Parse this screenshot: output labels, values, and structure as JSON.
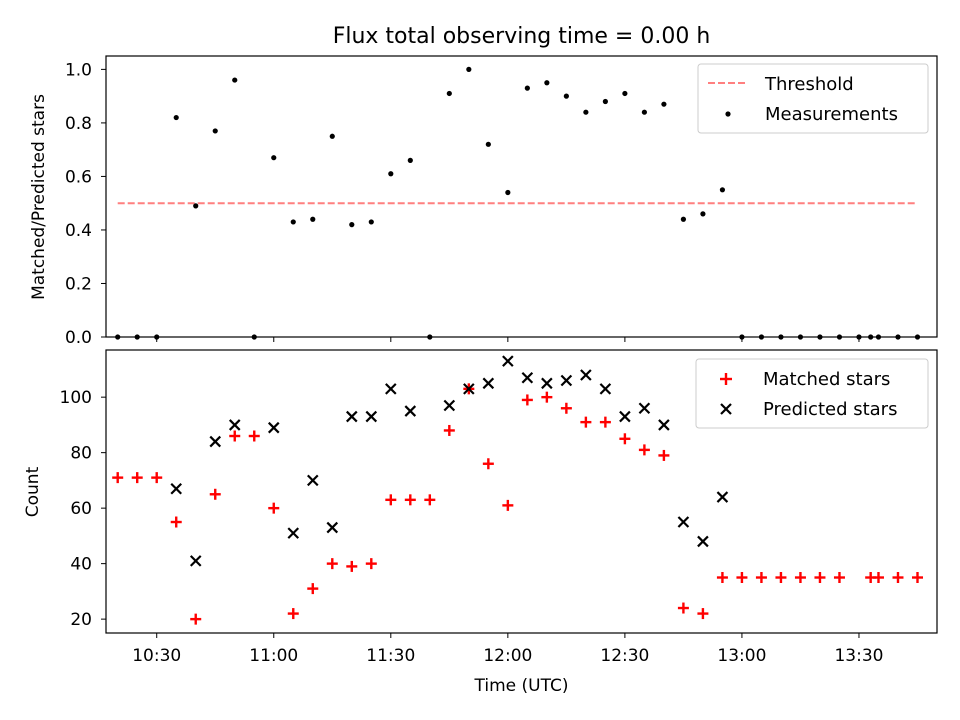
{
  "chart_data": [
    {
      "type": "scatter",
      "title": "Flux total observing time = 0.00 h",
      "ylabel": "Matched/Predicted stars",
      "xlabel": "",
      "xlim": [
        "10:17",
        "13:50"
      ],
      "ylim": [
        0,
        1.05
      ],
      "yticks": [
        "0.0",
        "0.2",
        "0.4",
        "0.6",
        "0.8",
        "1.0"
      ],
      "legend_position": "top-right",
      "legend": [
        "Threshold",
        "Measurements"
      ],
      "threshold": {
        "name": "Threshold",
        "value": 0.5,
        "x_start": "10:20",
        "x_end": "13:45",
        "color": "#ff7f7f",
        "style": "dashed"
      },
      "series": [
        {
          "name": "Measurements",
          "marker": "dot",
          "color": "#000000",
          "points": [
            [
              "10:20",
              0.0
            ],
            [
              "10:25",
              0.0
            ],
            [
              "10:30",
              0.0
            ],
            [
              "10:35",
              0.82
            ],
            [
              "10:40",
              0.49
            ],
            [
              "10:45",
              0.77
            ],
            [
              "10:50",
              0.96
            ],
            [
              "10:55",
              0.0
            ],
            [
              "11:00",
              0.67
            ],
            [
              "11:05",
              0.43
            ],
            [
              "11:10",
              0.44
            ],
            [
              "11:15",
              0.75
            ],
            [
              "11:20",
              0.42
            ],
            [
              "11:25",
              0.43
            ],
            [
              "11:30",
              0.61
            ],
            [
              "11:35",
              0.66
            ],
            [
              "11:40",
              0.0
            ],
            [
              "11:45",
              0.91
            ],
            [
              "11:50",
              1.0
            ],
            [
              "11:55",
              0.72
            ],
            [
              "12:00",
              0.54
            ],
            [
              "12:05",
              0.93
            ],
            [
              "12:10",
              0.95
            ],
            [
              "12:15",
              0.9
            ],
            [
              "12:20",
              0.84
            ],
            [
              "12:25",
              0.88
            ],
            [
              "12:30",
              0.91
            ],
            [
              "12:35",
              0.84
            ],
            [
              "12:40",
              0.87
            ],
            [
              "12:45",
              0.44
            ],
            [
              "12:50",
              0.46
            ],
            [
              "12:55",
              0.55
            ],
            [
              "13:00",
              0.0
            ],
            [
              "13:05",
              0.0
            ],
            [
              "13:10",
              0.0
            ],
            [
              "13:15",
              0.0
            ],
            [
              "13:20",
              0.0
            ],
            [
              "13:25",
              0.0
            ],
            [
              "13:30",
              0.0
            ],
            [
              "13:33",
              0.0
            ],
            [
              "13:35",
              0.0
            ],
            [
              "13:40",
              0.0
            ],
            [
              "13:45",
              0.0
            ]
          ]
        }
      ]
    },
    {
      "type": "scatter",
      "title": "",
      "ylabel": "Count",
      "xlabel": "Time (UTC)",
      "xlim": [
        "10:17",
        "13:50"
      ],
      "ylim": [
        15,
        117
      ],
      "yticks": [
        "20",
        "40",
        "60",
        "80",
        "100"
      ],
      "xticks": [
        "10:30",
        "11:00",
        "11:30",
        "12:00",
        "12:30",
        "13:00",
        "13:30"
      ],
      "legend_position": "top-right",
      "legend": [
        "Matched stars",
        "Predicted stars"
      ],
      "series": [
        {
          "name": "Matched stars",
          "marker": "plus",
          "color": "#ff0000",
          "points": [
            [
              "10:20",
              71
            ],
            [
              "10:25",
              71
            ],
            [
              "10:30",
              71
            ],
            [
              "10:35",
              55
            ],
            [
              "10:40",
              20
            ],
            [
              "10:45",
              65
            ],
            [
              "10:50",
              86
            ],
            [
              "10:55",
              86
            ],
            [
              "11:00",
              60
            ],
            [
              "11:05",
              22
            ],
            [
              "11:10",
              31
            ],
            [
              "11:15",
              40
            ],
            [
              "11:20",
              39
            ],
            [
              "11:25",
              40
            ],
            [
              "11:30",
              63
            ],
            [
              "11:35",
              63
            ],
            [
              "11:40",
              63
            ],
            [
              "11:45",
              88
            ],
            [
              "11:50",
              103
            ],
            [
              "11:55",
              76
            ],
            [
              "12:00",
              61
            ],
            [
              "12:05",
              99
            ],
            [
              "12:10",
              100
            ],
            [
              "12:15",
              96
            ],
            [
              "12:20",
              91
            ],
            [
              "12:25",
              91
            ],
            [
              "12:30",
              85
            ],
            [
              "12:35",
              81
            ],
            [
              "12:40",
              79
            ],
            [
              "12:45",
              24
            ],
            [
              "12:50",
              22
            ],
            [
              "12:55",
              35
            ],
            [
              "13:00",
              35
            ],
            [
              "13:05",
              35
            ],
            [
              "13:10",
              35
            ],
            [
              "13:15",
              35
            ],
            [
              "13:20",
              35
            ],
            [
              "13:25",
              35
            ],
            [
              "13:33",
              35
            ],
            [
              "13:35",
              35
            ],
            [
              "13:40",
              35
            ],
            [
              "13:45",
              35
            ]
          ]
        },
        {
          "name": "Predicted stars",
          "marker": "x",
          "color": "#000000",
          "points": [
            [
              "10:35",
              67
            ],
            [
              "10:40",
              41
            ],
            [
              "10:45",
              84
            ],
            [
              "10:50",
              90
            ],
            [
              "11:00",
              89
            ],
            [
              "11:05",
              51
            ],
            [
              "11:10",
              70
            ],
            [
              "11:15",
              53
            ],
            [
              "11:20",
              93
            ],
            [
              "11:25",
              93
            ],
            [
              "11:30",
              103
            ],
            [
              "11:35",
              95
            ],
            [
              "11:45",
              97
            ],
            [
              "11:50",
              103
            ],
            [
              "11:55",
              105
            ],
            [
              "12:00",
              113
            ],
            [
              "12:05",
              107
            ],
            [
              "12:10",
              105
            ],
            [
              "12:15",
              106
            ],
            [
              "12:20",
              108
            ],
            [
              "12:25",
              103
            ],
            [
              "12:30",
              93
            ],
            [
              "12:35",
              96
            ],
            [
              "12:40",
              90
            ],
            [
              "12:45",
              55
            ],
            [
              "12:50",
              48
            ],
            [
              "12:55",
              64
            ]
          ]
        }
      ]
    }
  ]
}
